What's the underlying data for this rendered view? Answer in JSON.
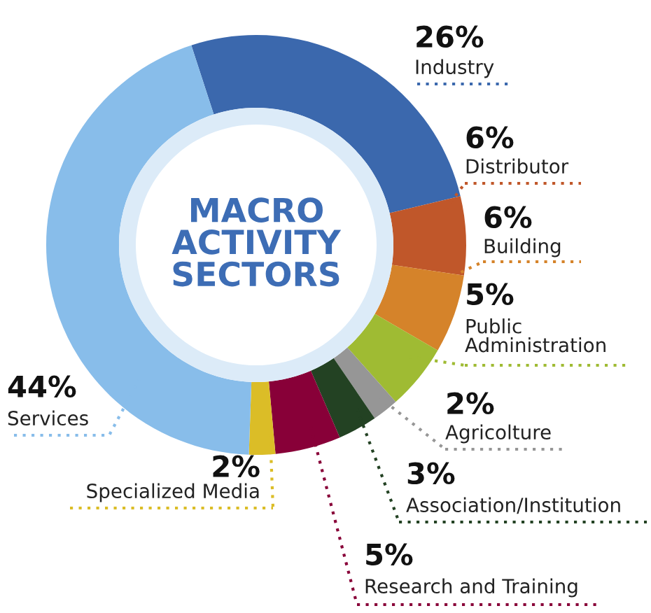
{
  "chart_data": {
    "type": "donut",
    "title": "MACRO ACTIVITY SECTORS",
    "categories": [
      "Industry",
      "Distributor",
      "Building",
      "Public Administration",
      "Agricolture",
      "Association/Institution",
      "Research and Training",
      "Specialized Media",
      "Services"
    ],
    "values": [
      26,
      6,
      6,
      5,
      2,
      3,
      5,
      2,
      44
    ],
    "colors": [
      "#3b68ad",
      "#c0572a",
      "#d5832a",
      "#9fbb33",
      "#969696",
      "#234223",
      "#880038",
      "#dbbd27",
      "#88bdea"
    ],
    "value_labels": [
      "26%",
      "6%",
      "6%",
      "5%",
      "2%",
      "3%",
      "5%",
      "2%",
      "44%"
    ]
  }
}
